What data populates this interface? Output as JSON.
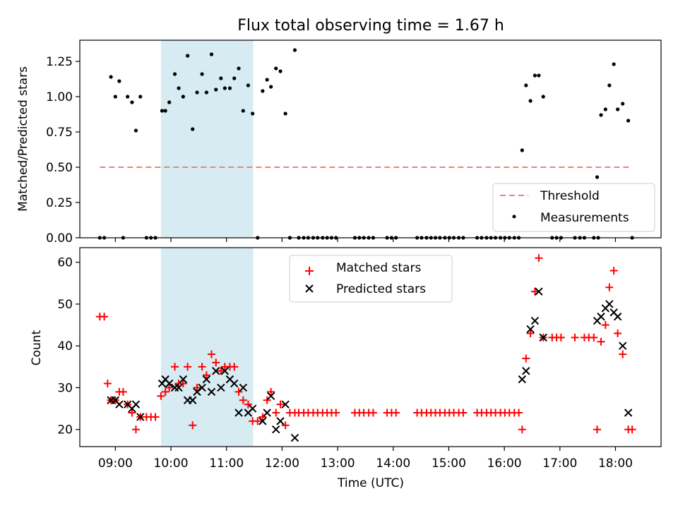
{
  "chart_data": [
    {
      "type": "scatter",
      "title": "Flux total observing time = 1.67 h",
      "xlabel": "",
      "ylabel": "Matched/Predicted stars",
      "xlim": [
        8.36,
        18.82
      ],
      "ylim": [
        0.0,
        1.4
      ],
      "yticks": [
        "0.00",
        "0.25",
        "0.50",
        "0.75",
        "1.00",
        "1.25"
      ],
      "ytick_values": [
        0.0,
        0.25,
        0.5,
        0.75,
        1.0,
        1.25
      ],
      "xticks": [
        9,
        10,
        11,
        12,
        13,
        14,
        15,
        16,
        17,
        18
      ],
      "shaded_region": [
        9.82,
        11.48
      ],
      "threshold": {
        "name": "Threshold",
        "value": 0.5,
        "x_range": [
          8.72,
          18.3
        ]
      },
      "legend": [
        "Threshold",
        "Measurements"
      ],
      "legend_position": "lower-right",
      "series": [
        {
          "name": "Measurements",
          "points": [
            [
              8.72,
              0
            ],
            [
              8.8,
              0
            ],
            [
              8.92,
              1.14
            ],
            [
              9.0,
              1.0
            ],
            [
              9.07,
              1.11
            ],
            [
              9.14,
              0
            ],
            [
              9.22,
              1.0
            ],
            [
              9.3,
              0.96
            ],
            [
              9.37,
              0.76
            ],
            [
              9.45,
              1.0
            ],
            [
              9.56,
              0
            ],
            [
              9.64,
              0
            ],
            [
              9.72,
              0
            ],
            [
              9.84,
              0.9
            ],
            [
              9.9,
              0.9
            ],
            [
              9.97,
              0.96
            ],
            [
              10.07,
              1.16
            ],
            [
              10.14,
              1.06
            ],
            [
              10.22,
              1.0
            ],
            [
              10.3,
              1.29
            ],
            [
              10.39,
              0.77
            ],
            [
              10.47,
              1.03
            ],
            [
              10.56,
              1.16
            ],
            [
              10.64,
              1.03
            ],
            [
              10.73,
              1.3
            ],
            [
              10.81,
              1.05
            ],
            [
              10.9,
              1.13
            ],
            [
              10.97,
              1.06
            ],
            [
              11.06,
              1.06
            ],
            [
              11.14,
              1.13
            ],
            [
              11.22,
              1.2
            ],
            [
              11.3,
              0.9
            ],
            [
              11.39,
              1.08
            ],
            [
              11.47,
              0.88
            ],
            [
              11.56,
              0
            ],
            [
              11.65,
              1.04
            ],
            [
              11.73,
              1.12
            ],
            [
              11.8,
              1.07
            ],
            [
              11.89,
              1.2
            ],
            [
              11.97,
              1.18
            ],
            [
              12.06,
              0.88
            ],
            [
              12.14,
              0
            ],
            [
              12.23,
              1.33
            ],
            [
              12.3,
              0
            ],
            [
              12.39,
              0
            ],
            [
              12.47,
              0
            ],
            [
              12.56,
              0
            ],
            [
              12.64,
              0
            ],
            [
              12.73,
              0
            ],
            [
              12.81,
              0
            ],
            [
              12.89,
              0
            ],
            [
              12.97,
              0
            ],
            [
              13.31,
              0
            ],
            [
              13.39,
              0
            ],
            [
              13.47,
              0
            ],
            [
              13.56,
              0
            ],
            [
              13.64,
              0
            ],
            [
              13.89,
              0
            ],
            [
              13.97,
              0
            ],
            [
              14.05,
              0
            ],
            [
              14.43,
              0
            ],
            [
              14.51,
              0
            ],
            [
              14.6,
              0
            ],
            [
              14.68,
              0
            ],
            [
              14.76,
              0
            ],
            [
              14.84,
              0
            ],
            [
              14.93,
              0
            ],
            [
              15.01,
              0
            ],
            [
              15.09,
              0
            ],
            [
              15.18,
              0
            ],
            [
              15.26,
              0
            ],
            [
              15.51,
              0
            ],
            [
              15.59,
              0
            ],
            [
              15.68,
              0
            ],
            [
              15.76,
              0
            ],
            [
              15.84,
              0
            ],
            [
              15.93,
              0
            ],
            [
              16.01,
              0
            ],
            [
              16.09,
              0
            ],
            [
              16.18,
              0
            ],
            [
              16.26,
              0
            ],
            [
              16.32,
              0.62
            ],
            [
              16.39,
              1.08
            ],
            [
              16.47,
              0.97
            ],
            [
              16.55,
              1.15
            ],
            [
              16.62,
              1.15
            ],
            [
              16.7,
              1.0
            ],
            [
              16.86,
              0
            ],
            [
              16.94,
              0
            ],
            [
              17.02,
              0
            ],
            [
              17.27,
              0
            ],
            [
              17.36,
              0
            ],
            [
              17.44,
              0
            ],
            [
              17.61,
              0
            ],
            [
              17.69,
              0
            ],
            [
              17.67,
              0.43
            ],
            [
              17.74,
              0.87
            ],
            [
              17.82,
              0.91
            ],
            [
              17.89,
              1.08
            ],
            [
              17.97,
              1.23
            ],
            [
              18.04,
              0.91
            ],
            [
              18.13,
              0.95
            ],
            [
              18.23,
              0.83
            ],
            [
              18.3,
              0
            ]
          ]
        }
      ]
    },
    {
      "type": "scatter",
      "title": "",
      "xlabel": "Time (UTC)",
      "ylabel": "Count",
      "xlim": [
        8.36,
        18.82
      ],
      "ylim": [
        15.9,
        63.5
      ],
      "yticks": [
        "20",
        "30",
        "40",
        "50",
        "60"
      ],
      "ytick_values": [
        20,
        30,
        40,
        50,
        60
      ],
      "xticks": [
        "09:00",
        "10:00",
        "11:00",
        "12:00",
        "13:00",
        "14:00",
        "15:00",
        "16:00",
        "17:00",
        "18:00"
      ],
      "xtick_values": [
        9,
        10,
        11,
        12,
        13,
        14,
        15,
        16,
        17,
        18
      ],
      "shaded_region": [
        9.82,
        11.48
      ],
      "legend": [
        "Matched stars",
        "Predicted stars"
      ],
      "legend_position": "top-center",
      "series": [
        {
          "name": "Matched stars",
          "marker": "+",
          "points": [
            [
              8.72,
              47
            ],
            [
              8.8,
              47
            ],
            [
              8.86,
              31
            ],
            [
              8.92,
              27
            ],
            [
              9.0,
              27
            ],
            [
              9.07,
              29
            ],
            [
              9.14,
              29
            ],
            [
              9.22,
              26
            ],
            [
              9.3,
              24
            ],
            [
              9.37,
              20
            ],
            [
              9.45,
              23
            ],
            [
              9.56,
              23
            ],
            [
              9.64,
              23
            ],
            [
              9.72,
              23
            ],
            [
              9.82,
              28
            ],
            [
              9.9,
              29
            ],
            [
              9.97,
              30
            ],
            [
              10.07,
              35
            ],
            [
              10.14,
              31
            ],
            [
              10.22,
              31
            ],
            [
              10.3,
              35
            ],
            [
              10.39,
              21
            ],
            [
              10.47,
              30
            ],
            [
              10.56,
              35
            ],
            [
              10.64,
              33
            ],
            [
              10.73,
              38
            ],
            [
              10.81,
              36
            ],
            [
              10.9,
              34
            ],
            [
              10.97,
              35
            ],
            [
              11.06,
              35
            ],
            [
              11.14,
              35
            ],
            [
              11.22,
              29
            ],
            [
              11.3,
              27
            ],
            [
              11.39,
              26
            ],
            [
              11.47,
              22
            ],
            [
              11.56,
              22
            ],
            [
              11.65,
              23
            ],
            [
              11.73,
              27
            ],
            [
              11.8,
              29
            ],
            [
              11.89,
              24
            ],
            [
              11.97,
              26
            ],
            [
              12.06,
              21
            ],
            [
              12.14,
              24
            ],
            [
              12.23,
              24
            ],
            [
              12.3,
              24
            ],
            [
              12.39,
              24
            ],
            [
              12.47,
              24
            ],
            [
              12.56,
              24
            ],
            [
              12.64,
              24
            ],
            [
              12.73,
              24
            ],
            [
              12.81,
              24
            ],
            [
              12.89,
              24
            ],
            [
              12.97,
              24
            ],
            [
              13.31,
              24
            ],
            [
              13.39,
              24
            ],
            [
              13.47,
              24
            ],
            [
              13.56,
              24
            ],
            [
              13.64,
              24
            ],
            [
              13.89,
              24
            ],
            [
              13.97,
              24
            ],
            [
              14.05,
              24
            ],
            [
              14.43,
              24
            ],
            [
              14.51,
              24
            ],
            [
              14.6,
              24
            ],
            [
              14.68,
              24
            ],
            [
              14.76,
              24
            ],
            [
              14.84,
              24
            ],
            [
              14.93,
              24
            ],
            [
              15.01,
              24
            ],
            [
              15.09,
              24
            ],
            [
              15.18,
              24
            ],
            [
              15.26,
              24
            ],
            [
              15.51,
              24
            ],
            [
              15.59,
              24
            ],
            [
              15.68,
              24
            ],
            [
              15.76,
              24
            ],
            [
              15.84,
              24
            ],
            [
              15.93,
              24
            ],
            [
              16.01,
              24
            ],
            [
              16.09,
              24
            ],
            [
              16.18,
              24
            ],
            [
              16.26,
              24
            ],
            [
              16.32,
              20
            ],
            [
              16.39,
              37
            ],
            [
              16.47,
              43
            ],
            [
              16.55,
              53
            ],
            [
              16.62,
              61
            ],
            [
              16.7,
              42
            ],
            [
              16.86,
              42
            ],
            [
              16.94,
              42
            ],
            [
              17.02,
              42
            ],
            [
              17.27,
              42
            ],
            [
              17.44,
              42
            ],
            [
              17.52,
              42
            ],
            [
              17.61,
              42
            ],
            [
              17.67,
              20
            ],
            [
              17.74,
              41
            ],
            [
              17.82,
              45
            ],
            [
              17.89,
              54
            ],
            [
              17.97,
              58
            ],
            [
              18.04,
              43
            ],
            [
              18.13,
              38
            ],
            [
              18.23,
              20
            ],
            [
              18.3,
              20
            ]
          ]
        },
        {
          "name": "Predicted stars",
          "marker": "x",
          "points": [
            [
              8.92,
              27
            ],
            [
              9.0,
              27
            ],
            [
              9.07,
              26
            ],
            [
              9.22,
              26
            ],
            [
              9.3,
              25
            ],
            [
              9.37,
              26
            ],
            [
              9.45,
              23
            ],
            [
              9.84,
              31
            ],
            [
              9.9,
              32
            ],
            [
              9.97,
              31
            ],
            [
              10.07,
              30
            ],
            [
              10.14,
              30
            ],
            [
              10.22,
              32
            ],
            [
              10.3,
              27
            ],
            [
              10.39,
              27
            ],
            [
              10.47,
              29
            ],
            [
              10.56,
              30
            ],
            [
              10.64,
              32
            ],
            [
              10.73,
              29
            ],
            [
              10.81,
              34
            ],
            [
              10.9,
              30
            ],
            [
              10.97,
              34
            ],
            [
              11.06,
              32
            ],
            [
              11.14,
              31
            ],
            [
              11.22,
              24
            ],
            [
              11.3,
              30
            ],
            [
              11.39,
              24
            ],
            [
              11.47,
              25
            ],
            [
              11.65,
              22
            ],
            [
              11.73,
              24
            ],
            [
              11.8,
              28
            ],
            [
              11.89,
              20
            ],
            [
              11.97,
              22
            ],
            [
              12.06,
              26
            ],
            [
              12.23,
              18
            ],
            [
              16.32,
              32
            ],
            [
              16.39,
              34
            ],
            [
              16.47,
              44
            ],
            [
              16.55,
              46
            ],
            [
              16.62,
              53
            ],
            [
              16.7,
              42
            ],
            [
              17.67,
              46
            ],
            [
              17.74,
              47
            ],
            [
              17.82,
              49
            ],
            [
              17.89,
              50
            ],
            [
              17.97,
              48
            ],
            [
              18.04,
              47
            ],
            [
              18.13,
              40
            ],
            [
              18.23,
              24
            ]
          ]
        }
      ]
    }
  ]
}
